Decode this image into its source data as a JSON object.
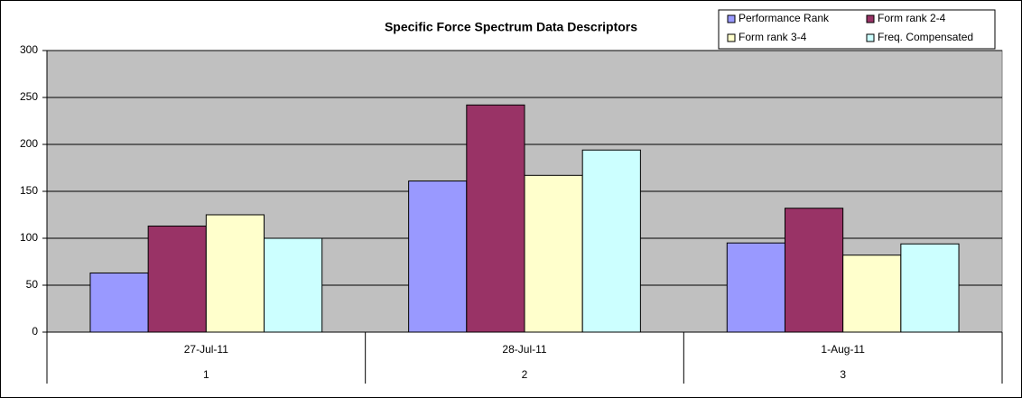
{
  "chart_data": {
    "type": "bar",
    "title": "Specific Force Spectrum Data Descriptors",
    "categories": [
      "27-Jul-11",
      "28-Jul-11",
      "1-Aug-11"
    ],
    "category_groups": [
      "1",
      "2",
      "3"
    ],
    "series": [
      {
        "name": "Performance Rank",
        "color": "#9999ff",
        "values": [
          63,
          161,
          95
        ]
      },
      {
        "name": "Form rank 2-4",
        "color": "#993366",
        "values": [
          113,
          242,
          132
        ]
      },
      {
        "name": "Form rank 3-4",
        "color": "#ffffcc",
        "values": [
          125,
          167,
          82
        ]
      },
      {
        "name": "Freq. Compensated",
        "color": "#ccffff",
        "values": [
          100,
          194,
          94
        ]
      }
    ],
    "ylim": [
      0,
      300
    ],
    "yticks": [
      0,
      50,
      100,
      150,
      200,
      250,
      300
    ],
    "grid": true,
    "legend": "top-right"
  }
}
